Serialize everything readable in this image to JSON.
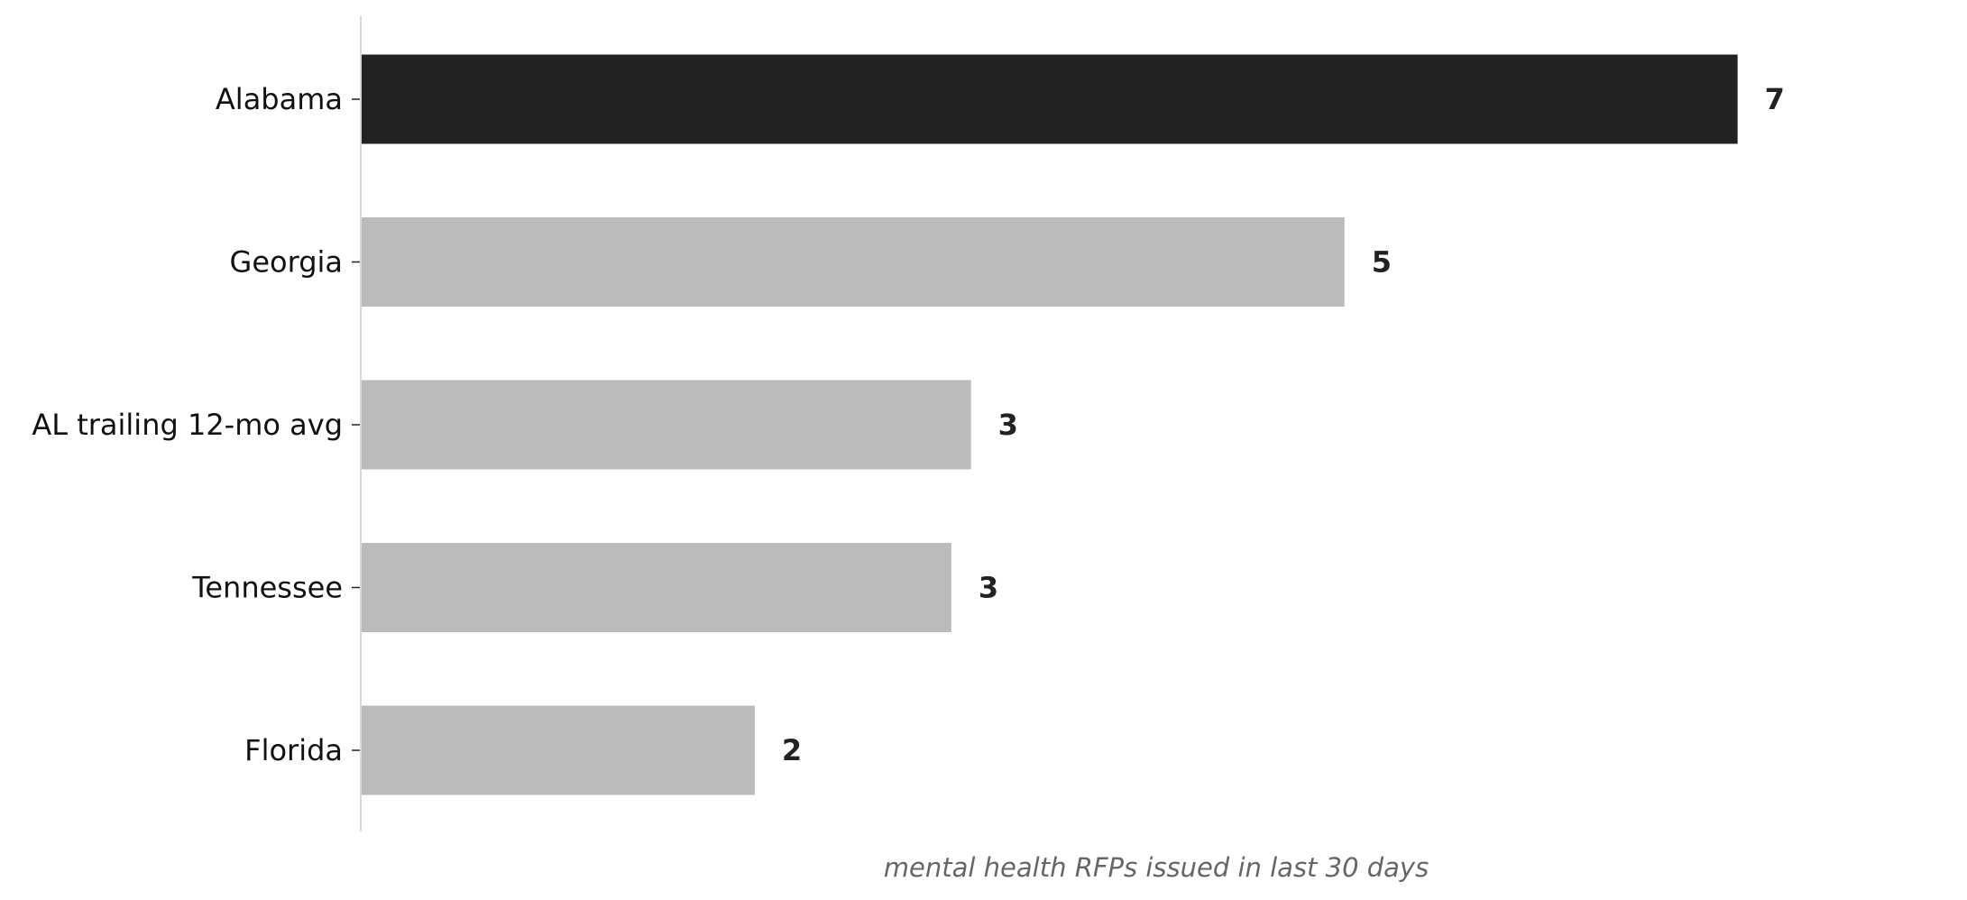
{
  "chart_data": {
    "type": "bar",
    "orientation": "horizontal",
    "categories": [
      "Alabama",
      "Georgia",
      "AL trailing 12-mo avg",
      "Tennessee",
      "Florida"
    ],
    "values": [
      7,
      5,
      3.1,
      3,
      2
    ],
    "value_labels": [
      "7",
      "5",
      "3",
      "3",
      "2"
    ],
    "xlabel": "mental health RFPs issued in last 30 days",
    "xlim": [
      0,
      7.8
    ],
    "grid": false,
    "highlight_category": "Alabama",
    "colors": {
      "highlight": "#222222",
      "default": "#bbbbbb",
      "axis": "#cccccc",
      "label": "#222222",
      "xlabel": "#666666"
    }
  }
}
